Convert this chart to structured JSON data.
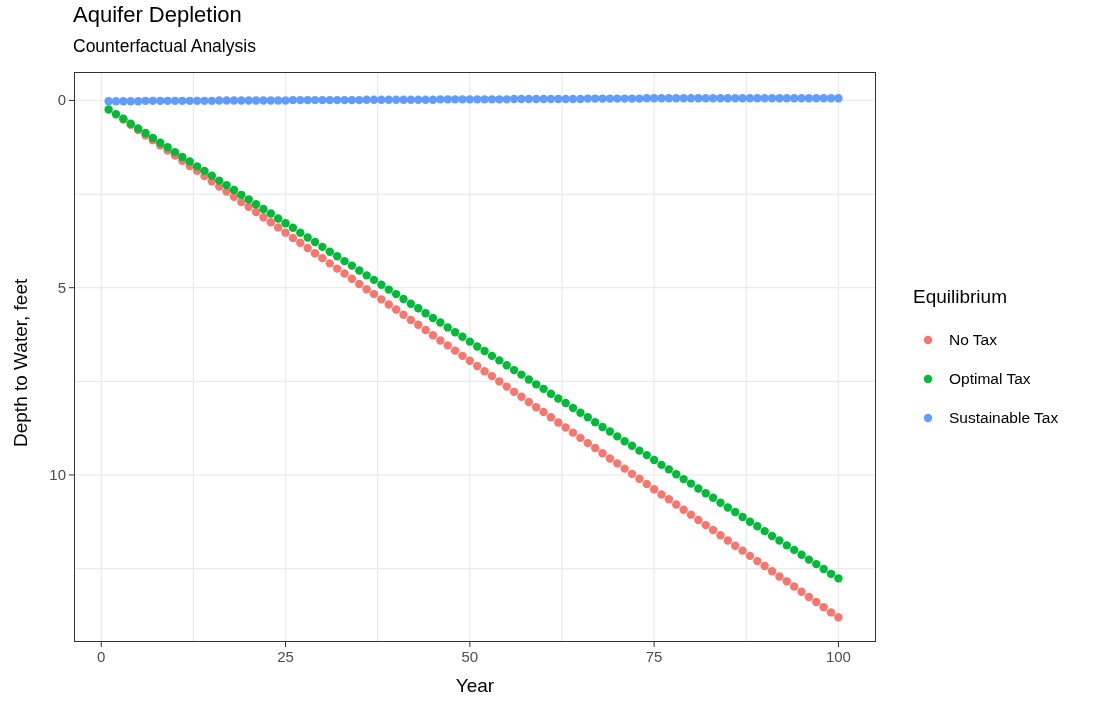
{
  "chart_data": {
    "type": "scatter",
    "title": "Aquifer Depletion",
    "subtitle": "Counterfactual Analysis",
    "xlabel": "Year",
    "ylabel": "Depth to Water, feet",
    "legend_title": "Equilibrium",
    "legend": "right",
    "grid": true,
    "marker": "circle",
    "x": [
      1,
      2,
      3,
      4,
      5,
      6,
      7,
      8,
      9,
      10,
      11,
      12,
      13,
      14,
      15,
      16,
      17,
      18,
      19,
      20,
      21,
      22,
      23,
      24,
      25,
      26,
      27,
      28,
      29,
      30,
      31,
      32,
      33,
      34,
      35,
      36,
      37,
      38,
      39,
      40,
      41,
      42,
      43,
      44,
      45,
      46,
      47,
      48,
      49,
      50,
      51,
      52,
      53,
      54,
      55,
      56,
      57,
      58,
      59,
      60,
      61,
      62,
      63,
      64,
      65,
      66,
      67,
      68,
      69,
      70,
      71,
      72,
      73,
      74,
      75,
      76,
      77,
      78,
      79,
      80,
      81,
      82,
      83,
      84,
      85,
      86,
      87,
      88,
      89,
      90,
      91,
      92,
      93,
      94,
      95,
      96,
      97,
      98,
      99,
      100
    ],
    "xlim": [
      -3.7,
      105.1
    ],
    "xticks": [
      0,
      {
        "value": 12.5,
        "label": null
      },
      25,
      {
        "value": 37.5,
        "label": null
      },
      50,
      {
        "value": 62.5,
        "label": null
      },
      75,
      {
        "value": 87.5,
        "label": null
      },
      100
    ],
    "ylim": [
      14.46,
      -0.76
    ],
    "yticks": [
      0,
      {
        "value": 2.5,
        "label": null
      },
      5,
      {
        "value": 7.5,
        "label": null
      },
      10,
      {
        "value": 12.5,
        "label": null
      }
    ],
    "series": [
      {
        "name": "No Tax",
        "color": "#f8766d",
        "values": [
          null,
          null,
          0.51,
          0.65,
          0.79,
          0.93,
          1.06,
          1.2,
          1.34,
          1.47,
          1.61,
          1.75,
          1.88,
          2.02,
          2.16,
          2.3,
          2.43,
          2.57,
          2.71,
          2.84,
          2.98,
          3.12,
          3.25,
          3.39,
          3.53,
          3.67,
          3.8,
          3.94,
          4.08,
          4.21,
          4.35,
          4.49,
          4.62,
          4.76,
          4.9,
          5.04,
          5.17,
          5.31,
          5.45,
          5.58,
          5.72,
          5.86,
          5.99,
          6.13,
          6.27,
          6.41,
          6.54,
          6.68,
          6.82,
          6.95,
          7.09,
          7.23,
          7.36,
          7.5,
          7.64,
          7.78,
          7.91,
          8.05,
          8.19,
          8.32,
          8.46,
          8.6,
          8.73,
          8.87,
          9.01,
          9.15,
          9.28,
          9.42,
          9.56,
          9.69,
          9.83,
          9.97,
          10.1,
          10.24,
          10.38,
          10.52,
          10.65,
          10.79,
          10.93,
          11.06,
          11.2,
          11.34,
          11.47,
          11.61,
          11.75,
          11.89,
          12.02,
          12.16,
          12.3,
          12.43,
          12.57,
          12.71,
          12.84,
          12.98,
          13.12,
          13.26,
          13.39,
          13.53,
          13.67,
          13.8
        ]
      },
      {
        "name": "Optimal Tax",
        "color": "#00ba38",
        "values": [
          0.24,
          0.37,
          0.49,
          0.62,
          0.75,
          0.87,
          1.0,
          1.13,
          1.25,
          1.38,
          1.51,
          1.63,
          1.76,
          1.88,
          2.01,
          2.14,
          2.26,
          2.39,
          2.52,
          2.64,
          2.77,
          2.9,
          3.02,
          3.15,
          3.28,
          3.4,
          3.53,
          3.66,
          3.78,
          3.91,
          4.04,
          4.16,
          4.29,
          4.41,
          4.54,
          4.67,
          4.79,
          4.92,
          5.05,
          5.17,
          5.3,
          5.43,
          5.55,
          5.68,
          5.81,
          5.93,
          6.06,
          6.19,
          6.31,
          6.44,
          6.57,
          6.69,
          6.82,
          6.94,
          7.07,
          7.2,
          7.32,
          7.45,
          7.58,
          7.7,
          7.83,
          7.96,
          8.08,
          8.21,
          8.34,
          8.46,
          8.59,
          8.72,
          8.84,
          8.97,
          9.1,
          9.22,
          9.35,
          9.47,
          9.6,
          9.73,
          9.85,
          9.98,
          10.11,
          10.23,
          10.36,
          10.49,
          10.61,
          10.74,
          10.87,
          10.99,
          11.12,
          11.25,
          11.37,
          11.5,
          11.63,
          11.75,
          11.88,
          12.0,
          12.13,
          12.26,
          12.38,
          12.51,
          12.64,
          12.76
        ]
      },
      {
        "name": "Sustainable Tax",
        "color": "#619cff",
        "values": [
          0.02,
          0.02,
          0.02,
          0.02,
          0.02,
          0.01,
          0.01,
          0.01,
          0.01,
          0.01,
          0.01,
          0.01,
          0.01,
          0.01,
          0.01,
          0.0,
          0.0,
          0.0,
          0.0,
          0.0,
          0.0,
          0.0,
          0.0,
          0.0,
          0.0,
          -0.01,
          -0.01,
          -0.01,
          -0.01,
          -0.01,
          -0.01,
          -0.01,
          -0.01,
          -0.01,
          -0.01,
          -0.02,
          -0.02,
          -0.02,
          -0.02,
          -0.02,
          -0.02,
          -0.02,
          -0.02,
          -0.02,
          -0.02,
          -0.03,
          -0.03,
          -0.03,
          -0.03,
          -0.03,
          -0.03,
          -0.03,
          -0.03,
          -0.03,
          -0.03,
          -0.04,
          -0.04,
          -0.04,
          -0.04,
          -0.04,
          -0.04,
          -0.04,
          -0.04,
          -0.04,
          -0.04,
          -0.05,
          -0.05,
          -0.05,
          -0.05,
          -0.05,
          -0.05,
          -0.05,
          -0.05,
          -0.06,
          -0.06,
          -0.06,
          -0.06,
          -0.06,
          -0.06,
          -0.06,
          -0.06,
          -0.06,
          -0.06,
          -0.06,
          -0.06,
          -0.06,
          -0.06,
          -0.06,
          -0.06,
          -0.06,
          -0.06,
          -0.06,
          -0.06,
          -0.06,
          -0.06,
          -0.06,
          -0.06,
          -0.06,
          -0.06,
          -0.06
        ]
      }
    ]
  }
}
